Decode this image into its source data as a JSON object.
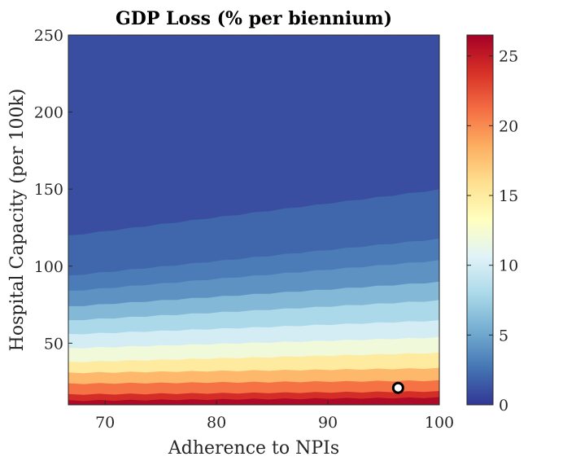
{
  "chart_data": {
    "type": "heatmap",
    "title": "GDP Loss (% per biennium)",
    "xlabel": "Adherence to NPIs",
    "ylabel": "Hospital Capacity (per 100k)",
    "xlim": [
      66.7,
      100
    ],
    "ylim": [
      10,
      250
    ],
    "xticks": [
      70,
      80,
      90,
      100
    ],
    "yticks": [
      50,
      100,
      150,
      200,
      250
    ],
    "colorbar": {
      "ticks": [
        0,
        5,
        10,
        15,
        20,
        25
      ],
      "range": [
        0,
        26.5
      ],
      "colormap": "RdYlBu_r",
      "colors": [
        "#313695",
        "#4575b4",
        "#74add1",
        "#abd9e9",
        "#e0f3f8",
        "#ffffbf",
        "#fee090",
        "#fdae61",
        "#f46d43",
        "#d73027",
        "#a50026"
      ]
    },
    "contour_levels": [
      {
        "value": 1,
        "y_at_x": [
          [
            66.7,
            250
          ],
          [
            100,
            250
          ]
        ]
      },
      {
        "value": 2,
        "y_at_x": [
          [
            66.7,
            120
          ],
          [
            100,
            150
          ]
        ]
      },
      {
        "value": 3,
        "y_at_x": [
          [
            66.7,
            94
          ],
          [
            100,
            118
          ]
        ]
      },
      {
        "value": 4,
        "y_at_x": [
          [
            66.7,
            84
          ],
          [
            100,
            104
          ]
        ]
      },
      {
        "value": 6,
        "y_at_x": [
          [
            66.7,
            74
          ],
          [
            100,
            90
          ]
        ]
      },
      {
        "value": 8,
        "y_at_x": [
          [
            66.7,
            65
          ],
          [
            100,
            78
          ]
        ]
      },
      {
        "value": 10,
        "y_at_x": [
          [
            66.7,
            56
          ],
          [
            100,
            65
          ]
        ]
      },
      {
        "value": 12,
        "y_at_x": [
          [
            66.7,
            47
          ],
          [
            100,
            54
          ]
        ]
      },
      {
        "value": 15,
        "y_at_x": [
          [
            66.7,
            38
          ],
          [
            100,
            44
          ]
        ]
      },
      {
        "value": 18,
        "y_at_x": [
          [
            66.7,
            31
          ],
          [
            100,
            34
          ]
        ]
      },
      {
        "value": 21,
        "y_at_x": [
          [
            66.7,
            24
          ],
          [
            100,
            26
          ]
        ]
      },
      {
        "value": 24,
        "y_at_x": [
          [
            66.7,
            17
          ],
          [
            100,
            19
          ]
        ]
      },
      {
        "value": 26,
        "y_at_x": [
          [
            66.7,
            13
          ],
          [
            100,
            15
          ]
        ]
      }
    ],
    "marker": {
      "x": 96.3,
      "y": 21,
      "shape": "circle"
    }
  }
}
